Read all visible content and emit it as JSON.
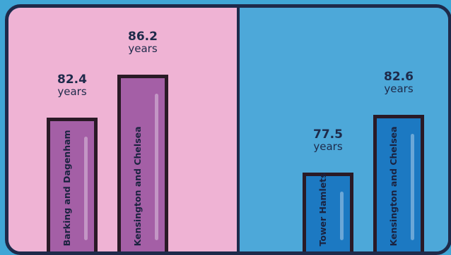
{
  "chart_data": [
    {
      "type": "bar",
      "categories": [
        "Barking and Dagenham",
        "Kensington and Chelsea"
      ],
      "values": [
        82.4,
        86.2
      ],
      "data_labels": [
        "82.4",
        "86.2"
      ],
      "unit": "years",
      "colors": {
        "bar": "#a45fa6",
        "background": "#efb3d4"
      }
    },
    {
      "type": "bar",
      "categories": [
        "Tower Hamlets",
        "Kensington and Chelsea"
      ],
      "values": [
        77.5,
        82.6
      ],
      "data_labels": [
        "77.5",
        "82.6"
      ],
      "unit": "years",
      "colors": {
        "bar": "#1c79c2",
        "background": "#4da8d9"
      }
    }
  ]
}
